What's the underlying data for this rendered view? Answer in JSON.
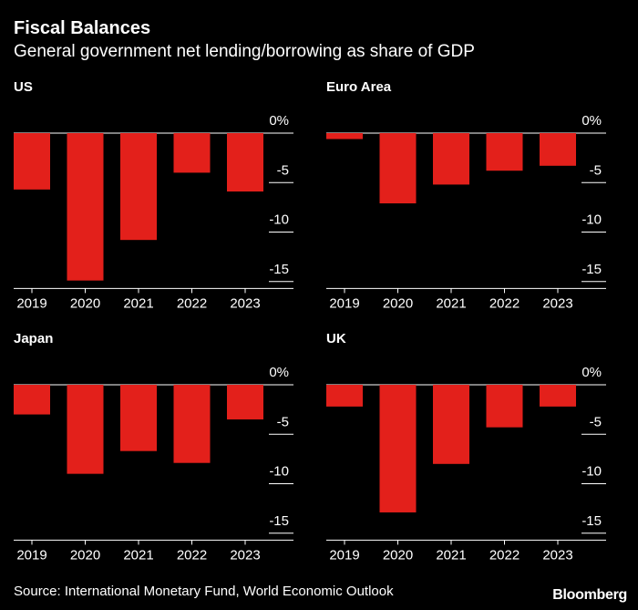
{
  "header": {
    "title": "Fiscal Balances",
    "subtitle": "General government net lending/borrowing as share of GDP"
  },
  "footer": {
    "source": "Source: International Monetary Fund, World Economic Outlook",
    "brand": "Bloomberg"
  },
  "colors": {
    "background": "#000000",
    "bar": "#e3201b",
    "text": "#ffffff",
    "grid": "#ffffff"
  },
  "chart_data": [
    {
      "type": "bar",
      "title": "US",
      "categories": [
        "2019",
        "2020",
        "2021",
        "2022",
        "2023"
      ],
      "values": [
        -5.7,
        -14.9,
        -10.8,
        -4.0,
        -5.9
      ],
      "y_ticks": [
        "0%",
        "-5",
        "-10",
        "-15"
      ],
      "ylim": [
        -15.7,
        0
      ],
      "grid": true
    },
    {
      "type": "bar",
      "title": "Euro Area",
      "categories": [
        "2019",
        "2020",
        "2021",
        "2022",
        "2023"
      ],
      "values": [
        -0.6,
        -7.1,
        -5.2,
        -3.8,
        -3.3
      ],
      "y_ticks": [
        "0%",
        "-5",
        "-10",
        "-15"
      ],
      "ylim": [
        -15.7,
        0
      ],
      "grid": true
    },
    {
      "type": "bar",
      "title": "Japan",
      "categories": [
        "2019",
        "2020",
        "2021",
        "2022",
        "2023"
      ],
      "values": [
        -3.0,
        -9.0,
        -6.7,
        -7.9,
        -3.5
      ],
      "y_ticks": [
        "0%",
        "-5",
        "-10",
        "-15"
      ],
      "ylim": [
        -15.7,
        0
      ],
      "grid": true
    },
    {
      "type": "bar",
      "title": "UK",
      "categories": [
        "2019",
        "2020",
        "2021",
        "2022",
        "2023"
      ],
      "values": [
        -2.2,
        -12.9,
        -8.0,
        -4.3,
        -2.2
      ],
      "y_ticks": [
        "0%",
        "-5",
        "-10",
        "-15"
      ],
      "ylim": [
        -15.7,
        0
      ],
      "grid": true
    }
  ]
}
